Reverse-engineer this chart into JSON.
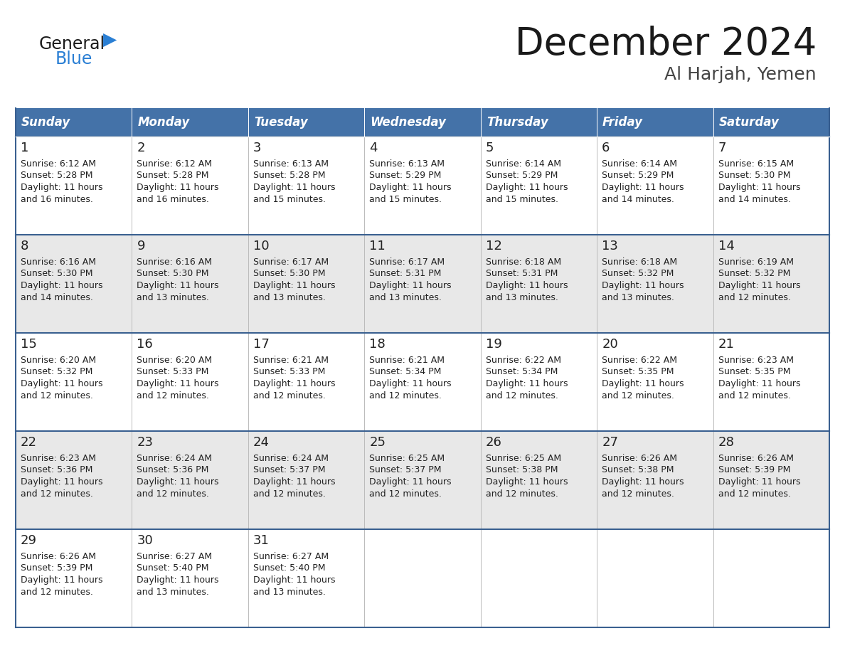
{
  "title": "December 2024",
  "subtitle": "Al Harjah, Yemen",
  "days_of_week": [
    "Sunday",
    "Monday",
    "Tuesday",
    "Wednesday",
    "Thursday",
    "Friday",
    "Saturday"
  ],
  "header_bg": "#4472a8",
  "header_text": "#ffffff",
  "row_bg": [
    "#ffffff",
    "#e8e8e8",
    "#ffffff",
    "#e8e8e8",
    "#ffffff"
  ],
  "cell_text": "#222222",
  "border_color": "#3a6090",
  "title_color": "#1a1a1a",
  "subtitle_color": "#444444",
  "logo_general_color": "#1a1a1a",
  "logo_blue_color": "#2a7fd4",
  "calendar": [
    [
      {
        "day": 1,
        "sunrise": "6:12 AM",
        "sunset": "5:28 PM",
        "daylight": "11 hours and 16 minutes."
      },
      {
        "day": 2,
        "sunrise": "6:12 AM",
        "sunset": "5:28 PM",
        "daylight": "11 hours and 16 minutes."
      },
      {
        "day": 3,
        "sunrise": "6:13 AM",
        "sunset": "5:28 PM",
        "daylight": "11 hours and 15 minutes."
      },
      {
        "day": 4,
        "sunrise": "6:13 AM",
        "sunset": "5:29 PM",
        "daylight": "11 hours and 15 minutes."
      },
      {
        "day": 5,
        "sunrise": "6:14 AM",
        "sunset": "5:29 PM",
        "daylight": "11 hours and 15 minutes."
      },
      {
        "day": 6,
        "sunrise": "6:14 AM",
        "sunset": "5:29 PM",
        "daylight": "11 hours and 14 minutes."
      },
      {
        "day": 7,
        "sunrise": "6:15 AM",
        "sunset": "5:30 PM",
        "daylight": "11 hours and 14 minutes."
      }
    ],
    [
      {
        "day": 8,
        "sunrise": "6:16 AM",
        "sunset": "5:30 PM",
        "daylight": "11 hours and 14 minutes."
      },
      {
        "day": 9,
        "sunrise": "6:16 AM",
        "sunset": "5:30 PM",
        "daylight": "11 hours and 13 minutes."
      },
      {
        "day": 10,
        "sunrise": "6:17 AM",
        "sunset": "5:30 PM",
        "daylight": "11 hours and 13 minutes."
      },
      {
        "day": 11,
        "sunrise": "6:17 AM",
        "sunset": "5:31 PM",
        "daylight": "11 hours and 13 minutes."
      },
      {
        "day": 12,
        "sunrise": "6:18 AM",
        "sunset": "5:31 PM",
        "daylight": "11 hours and 13 minutes."
      },
      {
        "day": 13,
        "sunrise": "6:18 AM",
        "sunset": "5:32 PM",
        "daylight": "11 hours and 13 minutes."
      },
      {
        "day": 14,
        "sunrise": "6:19 AM",
        "sunset": "5:32 PM",
        "daylight": "11 hours and 12 minutes."
      }
    ],
    [
      {
        "day": 15,
        "sunrise": "6:20 AM",
        "sunset": "5:32 PM",
        "daylight": "11 hours and 12 minutes."
      },
      {
        "day": 16,
        "sunrise": "6:20 AM",
        "sunset": "5:33 PM",
        "daylight": "11 hours and 12 minutes."
      },
      {
        "day": 17,
        "sunrise": "6:21 AM",
        "sunset": "5:33 PM",
        "daylight": "11 hours and 12 minutes."
      },
      {
        "day": 18,
        "sunrise": "6:21 AM",
        "sunset": "5:34 PM",
        "daylight": "11 hours and 12 minutes."
      },
      {
        "day": 19,
        "sunrise": "6:22 AM",
        "sunset": "5:34 PM",
        "daylight": "11 hours and 12 minutes."
      },
      {
        "day": 20,
        "sunrise": "6:22 AM",
        "sunset": "5:35 PM",
        "daylight": "11 hours and 12 minutes."
      },
      {
        "day": 21,
        "sunrise": "6:23 AM",
        "sunset": "5:35 PM",
        "daylight": "11 hours and 12 minutes."
      }
    ],
    [
      {
        "day": 22,
        "sunrise": "6:23 AM",
        "sunset": "5:36 PM",
        "daylight": "11 hours and 12 minutes."
      },
      {
        "day": 23,
        "sunrise": "6:24 AM",
        "sunset": "5:36 PM",
        "daylight": "11 hours and 12 minutes."
      },
      {
        "day": 24,
        "sunrise": "6:24 AM",
        "sunset": "5:37 PM",
        "daylight": "11 hours and 12 minutes."
      },
      {
        "day": 25,
        "sunrise": "6:25 AM",
        "sunset": "5:37 PM",
        "daylight": "11 hours and 12 minutes."
      },
      {
        "day": 26,
        "sunrise": "6:25 AM",
        "sunset": "5:38 PM",
        "daylight": "11 hours and 12 minutes."
      },
      {
        "day": 27,
        "sunrise": "6:26 AM",
        "sunset": "5:38 PM",
        "daylight": "11 hours and 12 minutes."
      },
      {
        "day": 28,
        "sunrise": "6:26 AM",
        "sunset": "5:39 PM",
        "daylight": "11 hours and 12 minutes."
      }
    ],
    [
      {
        "day": 29,
        "sunrise": "6:26 AM",
        "sunset": "5:39 PM",
        "daylight": "11 hours and 12 minutes."
      },
      {
        "day": 30,
        "sunrise": "6:27 AM",
        "sunset": "5:40 PM",
        "daylight": "11 hours and 13 minutes."
      },
      {
        "day": 31,
        "sunrise": "6:27 AM",
        "sunset": "5:40 PM",
        "daylight": "11 hours and 13 minutes."
      },
      null,
      null,
      null,
      null
    ]
  ]
}
